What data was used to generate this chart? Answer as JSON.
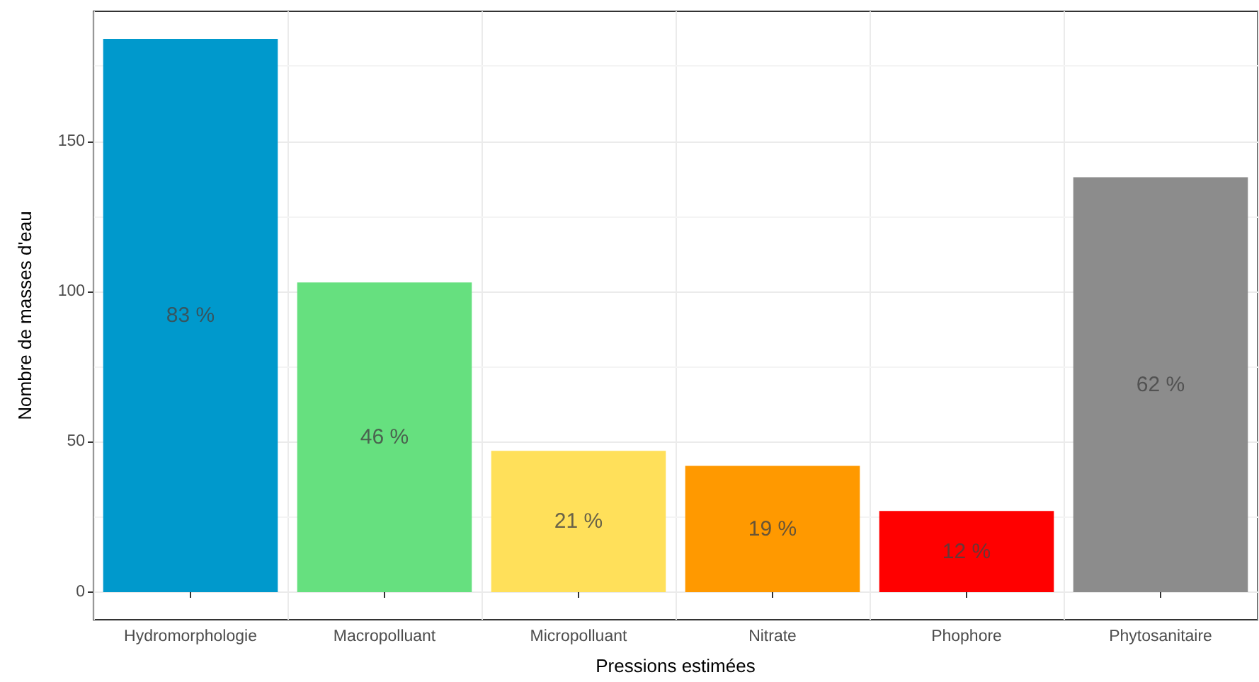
{
  "chart_data": {
    "type": "bar",
    "xlabel": "Pressions estimées",
    "ylabel": "Nombre de masses d'eau",
    "categories": [
      "Hydromorphologie",
      "Macropolluant",
      "Micropolluant",
      "Nitrate",
      "Phophore",
      "Phytosanitaire"
    ],
    "values": [
      184,
      103,
      47,
      42,
      27,
      138
    ],
    "colors": [
      "#0099cc",
      "#66e07f",
      "#ffe05a",
      "#ff9900",
      "#ff0000",
      "#8c8c8c"
    ],
    "annotations": [
      "83 %",
      "46 %",
      "21 %",
      "19 %",
      "12 %",
      "62 %"
    ],
    "ylim": [
      -9.2,
      193.2
    ],
    "yticks": [
      0,
      50,
      100,
      150
    ],
    "grid": true
  }
}
